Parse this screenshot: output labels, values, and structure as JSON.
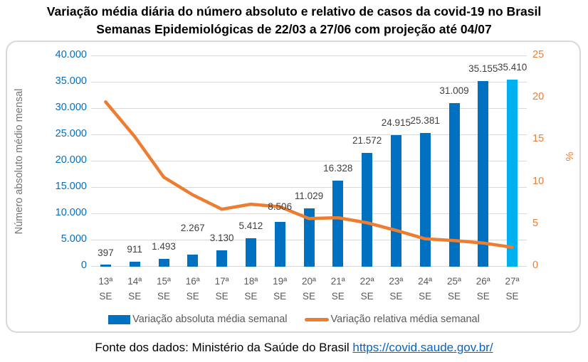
{
  "title": {
    "line1": "Variação média diária do número absoluto e relativo de casos da covid-19 no Brasil",
    "line2": "Semanas Epidemiológicas de 22/03 a 27/06 com projeção até 04/07"
  },
  "chart_data": {
    "type": "combo-bar-line",
    "categories": [
      "13ª",
      "14ª",
      "15ª",
      "16ª",
      "17ª",
      "18ª",
      "19ª",
      "20ª",
      "21ª",
      "22ª",
      "23ª",
      "24ª",
      "25ª",
      "26ª",
      "27ª"
    ],
    "category_unit": "SE",
    "series": [
      {
        "name": "Variação absoluta média semanal",
        "type": "bar",
        "axis": "left",
        "values": [
          397,
          911,
          1493,
          2267,
          3130,
          5412,
          8506,
          11029,
          16328,
          21572,
          24915,
          25381,
          31009,
          35155,
          35410
        ],
        "value_labels": [
          "397",
          "911",
          "1.493",
          "2.267",
          "3.130",
          "5.412",
          "8.506",
          "11.029",
          "16.328",
          "21.572",
          "24.915",
          "25.381",
          "31.009",
          "35.155",
          "35.410"
        ],
        "color": "#0070C0",
        "projection_index": 14,
        "projection_color": "#00B0F0"
      },
      {
        "name": "Variação relativa média semanal",
        "type": "line",
        "axis": "right",
        "values": [
          19.5,
          15.4,
          10.6,
          8.5,
          6.8,
          7.4,
          7.1,
          5.7,
          5.8,
          5.2,
          4.3,
          3.3,
          3.1,
          2.8,
          2.3
        ],
        "color": "#ED7D31"
      }
    ],
    "left_axis": {
      "title": "Número absoluto médio mensal",
      "min": 0,
      "max": 40000,
      "tick_labels": [
        "40.000",
        "35.000",
        "30.000",
        "25.000",
        "20.000",
        "15.000",
        "10.000",
        "5.000",
        "0"
      ],
      "color": "#0070C0"
    },
    "right_axis": {
      "title": "%",
      "min": 0,
      "max": 25,
      "tick_labels": [
        "25",
        "20",
        "15",
        "10",
        "5",
        "0"
      ],
      "color": "#ED7D31"
    },
    "grid": true,
    "gridline_color": "#D9D9D9",
    "legend_position": "bottom"
  },
  "footer": {
    "text": "Fonte dos dados: Ministério da Saúde do Brasil",
    "link": "https://covid.saude.gov.br/"
  }
}
